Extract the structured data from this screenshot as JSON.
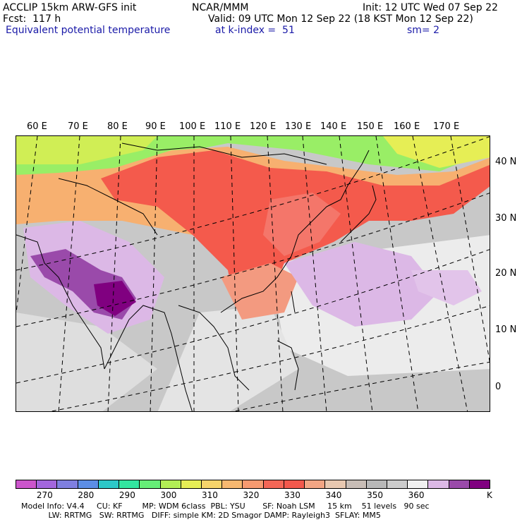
{
  "header": {
    "model": "ACCLIP 15km ARW-GFS init",
    "org": "NCAR/MMM",
    "init": "Init: 12 UTC Wed 07 Sep 22",
    "fcst": "Fcst:  117 h",
    "valid": "Valid: 09 UTC Mon 12 Sep 22 (18 KST Mon 12 Sep 22)",
    "field": "Equivalent potential temperature",
    "level": "at k-index =  51",
    "smooth": "sm= 2"
  },
  "map": {
    "lon_labels": [
      "60 E",
      "70 E",
      "80 E",
      "90 E",
      "100 E",
      "110 E",
      "120 E",
      "130 E",
      "140 E",
      "150 E",
      "160 E",
      "170 E"
    ],
    "lat_labels": [
      "40 N",
      "30 N",
      "20 N",
      "10 N",
      "0"
    ]
  },
  "colorbar": {
    "colors": [
      "#cc55cc",
      "#a366dd",
      "#7f7fe0",
      "#5c8ee6",
      "#2dc8c8",
      "#33e6a0",
      "#66ee77",
      "#b2ee55",
      "#e6ee55",
      "#f6d46a",
      "#f7b870",
      "#f79a70",
      "#f46656",
      "#f2584c",
      "#f2a584",
      "#e8c8b0",
      "#c8bdb6",
      "#b8b8b8",
      "#cccccc",
      "#f0f0f0",
      "#dcb8e6",
      "#9a4aaa",
      "#800080"
    ],
    "labels": [
      "270",
      "280",
      "290",
      "300",
      "310",
      "320",
      "330",
      "340",
      "350",
      "360"
    ],
    "unit": "K"
  },
  "footer": {
    "line1": "Model Info: V4.4     CU: KF        MP: WDM 6class  PBL: YSU       SF: Noah LSM     15 km    51 levels   90 sec",
    "line2": "           LW: RRTMG   SW: RRTMG   DIFF: simple KM: 2D Smagor DAMP: Rayleigh3  SFLAY: MM5"
  }
}
